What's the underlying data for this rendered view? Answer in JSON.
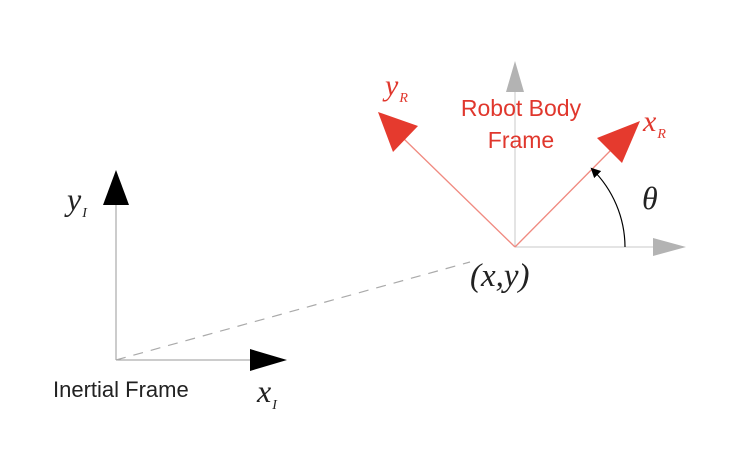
{
  "labels": {
    "robot_frame_line1": "Robot Body",
    "robot_frame_line2": "Frame",
    "inertial_frame": "Inertial Frame",
    "position": "(x,y)",
    "theta": "θ",
    "y_r_main": "y",
    "y_r_sub": "R",
    "x_r_main": "x",
    "x_r_sub": "R",
    "y_i_main": "y",
    "y_i_sub": "I",
    "x_i_main": "x",
    "x_i_sub": "I"
  },
  "colors": {
    "robot_frame": "#e53a2e",
    "inertial_frame": "#000000",
    "reference_axes": "#b3b3b3",
    "label_text": "#222222",
    "robot_label_text": "#e0372d"
  }
}
